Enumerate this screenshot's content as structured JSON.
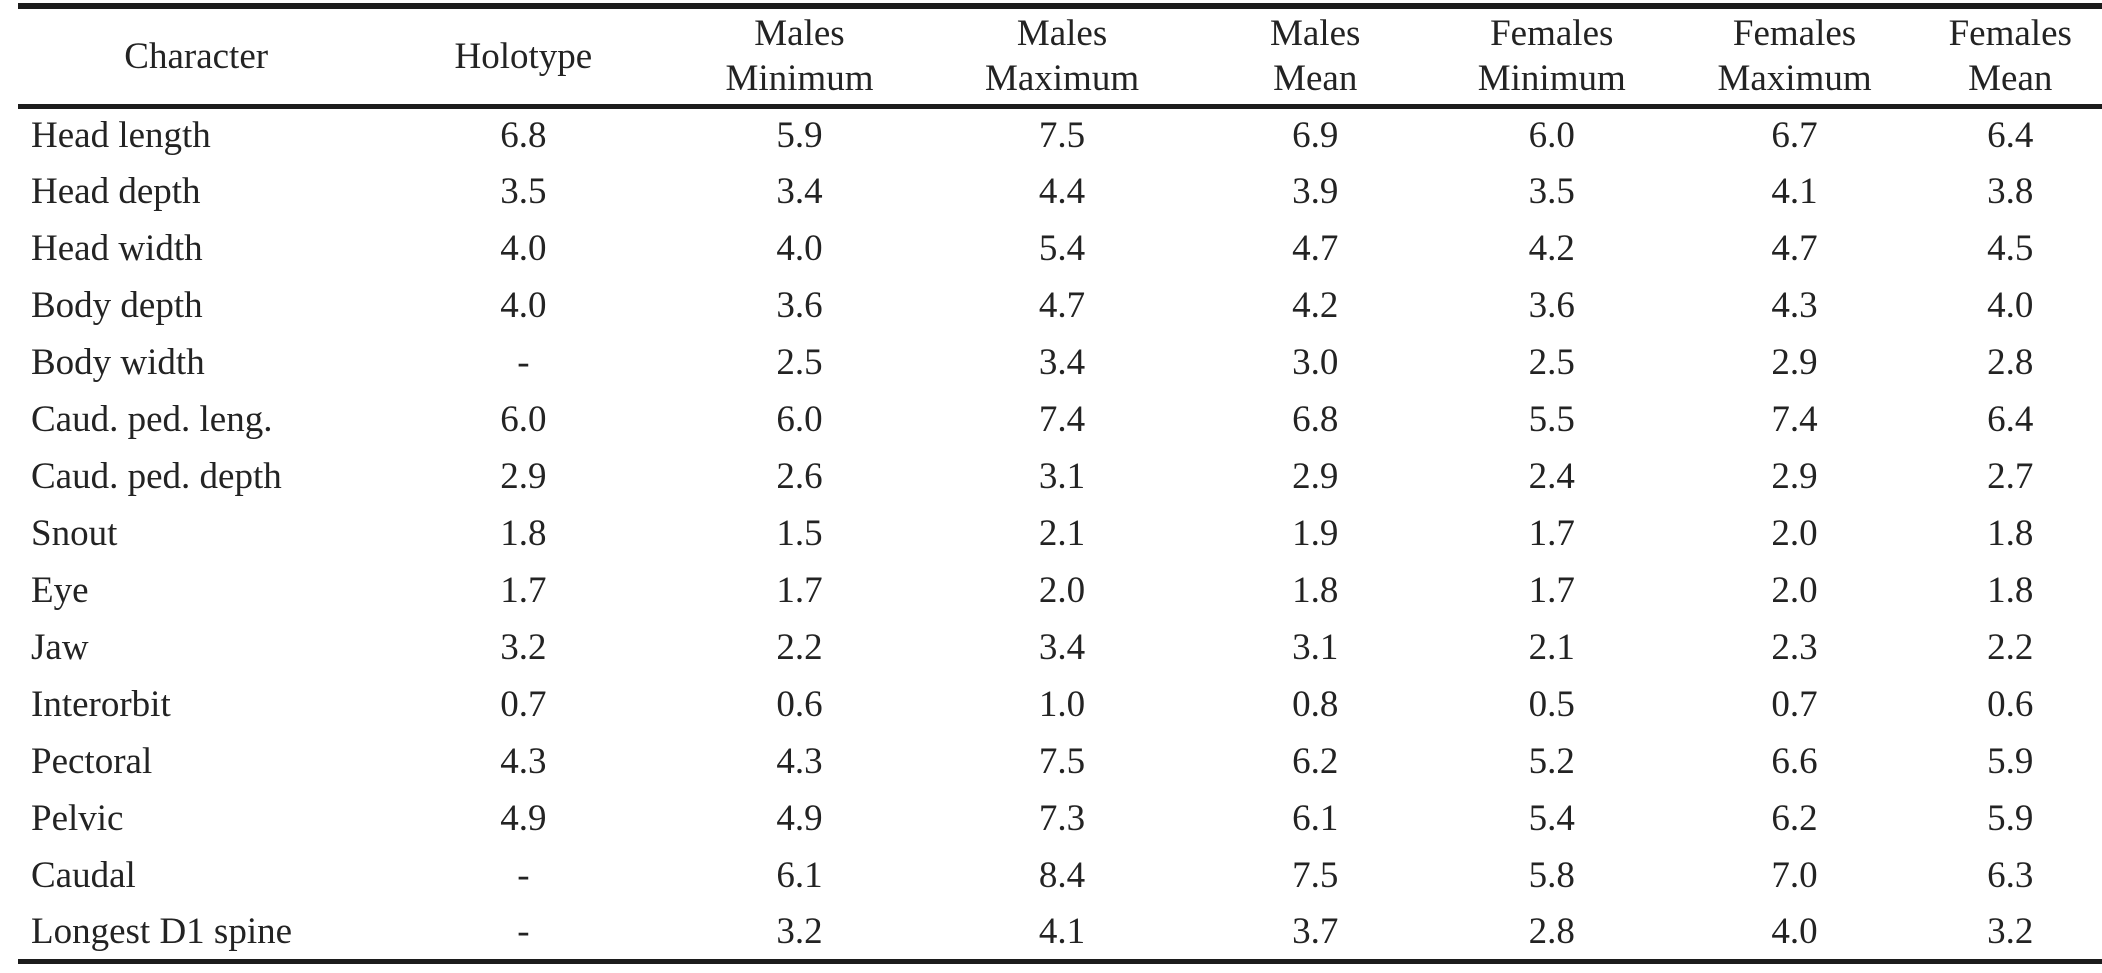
{
  "table": {
    "header": {
      "columns": [
        {
          "line1": "Character",
          "line2": ""
        },
        {
          "line1": "Holotype",
          "line2": ""
        },
        {
          "line1": "Males",
          "line2": "Minimum"
        },
        {
          "line1": "Males",
          "line2": "Maximum"
        },
        {
          "line1": "Males",
          "line2": "Mean"
        },
        {
          "line1": "Females",
          "line2": "Minimum"
        },
        {
          "line1": "Females",
          "line2": "Maximum"
        },
        {
          "line1": "Females",
          "line2": "Mean"
        }
      ]
    },
    "rows": [
      {
        "character": "Head length",
        "values": [
          "6.8",
          "5.9",
          "7.5",
          "6.9",
          "6.0",
          "6.7",
          "6.4"
        ]
      },
      {
        "character": "Head depth",
        "values": [
          "3.5",
          "3.4",
          "4.4",
          "3.9",
          "3.5",
          "4.1",
          "3.8"
        ]
      },
      {
        "character": "Head width",
        "values": [
          "4.0",
          "4.0",
          "5.4",
          "4.7",
          "4.2",
          "4.7",
          "4.5"
        ]
      },
      {
        "character": "Body depth",
        "values": [
          "4.0",
          "3.6",
          "4.7",
          "4.2",
          "3.6",
          "4.3",
          "4.0"
        ]
      },
      {
        "character": "Body width",
        "values": [
          "-",
          "2.5",
          "3.4",
          "3.0",
          "2.5",
          "2.9",
          "2.8"
        ]
      },
      {
        "character": "Caud. ped. leng.",
        "values": [
          "6.0",
          "6.0",
          "7.4",
          "6.8",
          "5.5",
          "7.4",
          "6.4"
        ]
      },
      {
        "character": "Caud. ped. depth",
        "values": [
          "2.9",
          "2.6",
          "3.1",
          "2.9",
          "2.4",
          "2.9",
          "2.7"
        ]
      },
      {
        "character": "Snout",
        "values": [
          "1.8",
          "1.5",
          "2.1",
          "1.9",
          "1.7",
          "2.0",
          "1.8"
        ]
      },
      {
        "character": "Eye",
        "values": [
          "1.7",
          "1.7",
          "2.0",
          "1.8",
          "1.7",
          "2.0",
          "1.8"
        ]
      },
      {
        "character": "Jaw",
        "values": [
          "3.2",
          "2.2",
          "3.4",
          "3.1",
          "2.1",
          "2.3",
          "2.2"
        ]
      },
      {
        "character": "Interorbit",
        "values": [
          "0.7",
          "0.6",
          "1.0",
          "0.8",
          "0.5",
          "0.7",
          "0.6"
        ]
      },
      {
        "character": "Pectoral",
        "values": [
          "4.3",
          "4.3",
          "7.5",
          "6.2",
          "5.2",
          "6.6",
          "5.9"
        ]
      },
      {
        "character": "Pelvic",
        "values": [
          "4.9",
          "4.9",
          "7.3",
          "6.1",
          "5.4",
          "6.2",
          "5.9"
        ]
      },
      {
        "character": "Caudal",
        "values": [
          "-",
          "6.1",
          "8.4",
          "7.5",
          "5.8",
          "7.0",
          "6.3"
        ]
      },
      {
        "character": "Longest D1 spine",
        "values": [
          "-",
          "3.2",
          "4.1",
          "3.7",
          "2.8",
          "4.0",
          "3.2"
        ]
      }
    ]
  }
}
